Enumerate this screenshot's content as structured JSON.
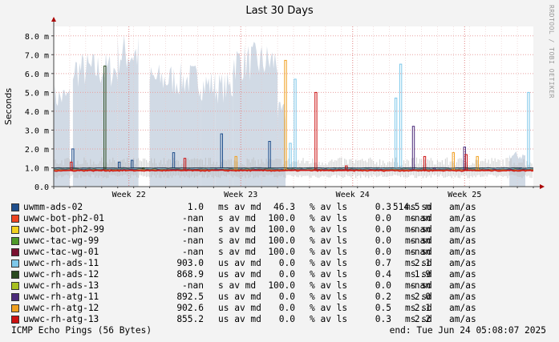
{
  "chart_data": {
    "type": "line",
    "title": "Last 30 Days",
    "ylabel": "Seconds",
    "xlabel": "",
    "ylim": [
      0,
      0.0085
    ],
    "yticks": [
      {
        "v": 0.0,
        "label": "0.0"
      },
      {
        "v": 0.001,
        "label": "1.0 m"
      },
      {
        "v": 0.002,
        "label": "2.0 m"
      },
      {
        "v": 0.003,
        "label": "3.0 m"
      },
      {
        "v": 0.004,
        "label": "4.0 m"
      },
      {
        "v": 0.005,
        "label": "5.0 m"
      },
      {
        "v": 0.006,
        "label": "6.0 m"
      },
      {
        "v": 0.007,
        "label": "7.0 m"
      },
      {
        "v": 0.008,
        "label": "8.0 m"
      }
    ],
    "xlim": [
      0,
      30
    ],
    "xticks": [
      {
        "v": 4.7,
        "label": "Week 22"
      },
      {
        "v": 11.7,
        "label": "Week 23"
      },
      {
        "v": 18.7,
        "label": "Week 24"
      },
      {
        "v": 25.7,
        "label": "Week 25"
      }
    ],
    "grid": true,
    "watermark": "RRDTOOL / TOBI OETIKER",
    "loss_bands": [
      [
        0.0,
        1.0,
        0.0055
      ],
      [
        1.2,
        4.0,
        0.0072
      ],
      [
        4.0,
        5.3,
        0.0082
      ],
      [
        6.0,
        9.2,
        0.0066
      ],
      [
        9.2,
        10.1,
        0.0063
      ],
      [
        10.1,
        11.2,
        0.0061
      ],
      [
        11.2,
        14.0,
        0.0077
      ],
      [
        14.0,
        14.5,
        0.0045
      ],
      [
        28.5,
        29.5,
        0.0019
      ]
    ],
    "series": [
      {
        "name": "uwmm-ads-02",
        "color": "#1f4e8c",
        "median": 0.00099,
        "spikes": [
          [
            1.2,
            0.002
          ],
          [
            4.1,
            0.0013
          ],
          [
            4.9,
            0.0014
          ],
          [
            7.5,
            0.0018
          ],
          [
            10.5,
            0.0028
          ],
          [
            13.5,
            0.0024
          ],
          [
            29.2,
            0.001
          ]
        ]
      },
      {
        "name": "uwwc-rh-ads-11",
        "color": "#7ec8ea",
        "median": 0.00095,
        "spikes": [
          [
            14.8,
            0.0023
          ],
          [
            15.1,
            0.0057
          ],
          [
            21.4,
            0.0047
          ],
          [
            21.7,
            0.0065
          ],
          [
            29.7,
            0.005
          ]
        ]
      },
      {
        "name": "uwwc-rh-ads-12",
        "color": "#2a4a20",
        "median": 0.00093,
        "spikes": [
          [
            3.2,
            0.0064
          ],
          [
            5.6,
            0.001
          ]
        ]
      },
      {
        "name": "uwwc-rh-atg-11",
        "color": "#4b2a7a",
        "median": 0.0009,
        "spikes": [
          [
            22.5,
            0.0032
          ],
          [
            23.8,
            0.001
          ],
          [
            25.7,
            0.0021
          ]
        ]
      },
      {
        "name": "uwwc-rh-atg-12",
        "color": "#f0a020",
        "median": 0.00088,
        "spikes": [
          [
            11.4,
            0.0016
          ],
          [
            14.5,
            0.0067
          ],
          [
            25.0,
            0.0018
          ],
          [
            26.5,
            0.0016
          ]
        ]
      },
      {
        "name": "uwwc-rh-atg-13",
        "color": "#cc1111",
        "median": 0.00085,
        "spikes": [
          [
            1.1,
            0.0013
          ],
          [
            8.2,
            0.0015
          ],
          [
            16.4,
            0.005
          ],
          [
            18.3,
            0.0011
          ],
          [
            23.2,
            0.0016
          ],
          [
            25.8,
            0.0017
          ]
        ]
      }
    ]
  },
  "legend": [
    {
      "name": "uwmm-ads-02",
      "color": "#1f4e8c",
      "median": "1.0",
      "median_unit": "ms",
      "loss": "46.3",
      "sd": "0.3",
      "sd_unit": "ms",
      "amas": "514.5 m",
      "amas_unit": "am/as"
    },
    {
      "name": "uwwc-bot-ph2-01",
      "color": "#ee4422",
      "median": "-nan",
      "median_unit": "s",
      "loss": "100.0",
      "sd": "0.0",
      "sd_unit": "ms",
      "amas": "-nan",
      "amas_unit": "am/as"
    },
    {
      "name": "uwwc-bot-ph2-99",
      "color": "#f2d020",
      "median": "-nan",
      "median_unit": "s",
      "loss": "100.0",
      "sd": "0.0",
      "sd_unit": "ms",
      "amas": "-nan",
      "amas_unit": "am/as"
    },
    {
      "name": "uwwc-tac-wg-99",
      "color": "#4f9a2a",
      "median": "-nan",
      "median_unit": "s",
      "loss": "100.0",
      "sd": "0.0",
      "sd_unit": "ms",
      "amas": "-nan",
      "amas_unit": "am/as"
    },
    {
      "name": "uwwc-tac-wg-01",
      "color": "#7a1030",
      "median": "-nan",
      "median_unit": "s",
      "loss": "100.0",
      "sd": "0.0",
      "sd_unit": "ms",
      "amas": "-nan",
      "amas_unit": "am/as"
    },
    {
      "name": "uwwc-rh-ads-11",
      "color": "#7ec8ea",
      "median": "903.0",
      "median_unit": "us",
      "loss": "0.0",
      "sd": "0.7",
      "sd_unit": "ms",
      "amas": "2.1",
      "amas_unit": "am/as"
    },
    {
      "name": "uwwc-rh-ads-12",
      "color": "#2a4a20",
      "median": "868.9",
      "median_unit": "us",
      "loss": "0.0",
      "sd": "0.4",
      "sd_unit": "ms",
      "amas": "1.9",
      "amas_unit": "am/as"
    },
    {
      "name": "uwwc-rh-ads-13",
      "color": "#a8c020",
      "median": "-nan",
      "median_unit": "s",
      "loss": "100.0",
      "sd": "0.0",
      "sd_unit": "ms",
      "amas": "-nan",
      "amas_unit": "am/as"
    },
    {
      "name": "uwwc-rh-atg-11",
      "color": "#4b2a7a",
      "median": "892.5",
      "median_unit": "us",
      "loss": "0.0",
      "sd": "0.2",
      "sd_unit": "ms",
      "amas": "2.0",
      "amas_unit": "am/as"
    },
    {
      "name": "uwwc-rh-atg-12",
      "color": "#f0a020",
      "median": "902.6",
      "median_unit": "us",
      "loss": "0.0",
      "sd": "0.5",
      "sd_unit": "ms",
      "amas": "2.1",
      "amas_unit": "am/as"
    },
    {
      "name": "uwwc-rh-atg-13",
      "color": "#cc1111",
      "median": "855.2",
      "median_unit": "us",
      "loss": "0.0",
      "sd": "0.3",
      "sd_unit": "ms",
      "amas": "2.2",
      "amas_unit": "am/as"
    }
  ],
  "legend_labels": {
    "av_md": "av md",
    "loss_sym": "%",
    "av_ls": "av ls",
    "sd": "sd"
  },
  "footer": {
    "left": "ICMP Echo Pings (56 Bytes)",
    "right": "end: Tue Jun 24 05:08:07 2025"
  }
}
